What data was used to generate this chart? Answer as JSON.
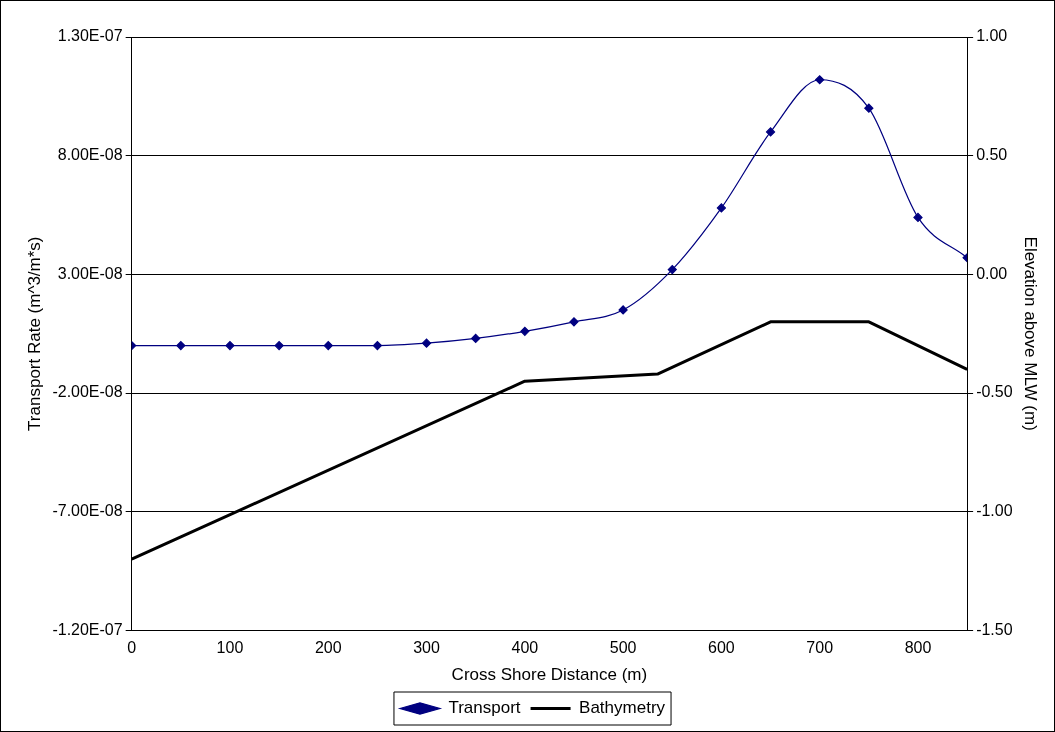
{
  "chart_data": {
    "type": "line",
    "xlabel": "Cross Shore Distance (m)",
    "ylabel": "Transport Rate (m^3/m*s)",
    "y2label": "Elevation above MLW (m)",
    "xlim": [
      0,
      850
    ],
    "xticks": [
      0,
      100,
      200,
      300,
      400,
      500,
      600,
      700,
      800
    ],
    "ylim": [
      -1.2e-07,
      1.3e-07
    ],
    "yticks": [
      {
        "value": -1.2e-07,
        "label": "-1.20E-07"
      },
      {
        "value": -7e-08,
        "label": "-7.00E-08"
      },
      {
        "value": -2e-08,
        "label": "-2.00E-08"
      },
      {
        "value": 3e-08,
        "label": "3.00E-08"
      },
      {
        "value": 8e-08,
        "label": "8.00E-08"
      },
      {
        "value": 1.3e-07,
        "label": "1.30E-07"
      }
    ],
    "y2lim": [
      -1.5,
      1
    ],
    "y2ticks": [
      {
        "value": -1.5,
        "label": "-1.50"
      },
      {
        "value": -1,
        "label": "-1.00"
      },
      {
        "value": -0.5,
        "label": "-0.50"
      },
      {
        "value": 0,
        "label": "0.00"
      },
      {
        "value": 0.5,
        "label": "0.50"
      },
      {
        "value": 1,
        "label": "1.00"
      }
    ],
    "grid": "y",
    "legend": "bottom",
    "series": [
      {
        "name": "Transport",
        "color": "#000080",
        "marker": "diamond",
        "x": [
          0,
          50,
          100,
          150,
          200,
          250,
          300,
          350,
          400,
          450,
          500,
          550,
          600,
          650,
          700,
          750,
          800,
          850
        ],
        "values": [
          0,
          0,
          0,
          0,
          0,
          0,
          1e-09,
          3e-09,
          6e-09,
          1e-08,
          1.5e-08,
          3.2e-08,
          5.8e-08,
          9e-08,
          1.12e-07,
          1e-07,
          5.4e-08,
          3.7e-08
        ]
      },
      {
        "name": "Bathymetry",
        "color": "#000000",
        "marker": "none",
        "axis": "y2",
        "x": [
          0,
          400,
          535,
          650,
          750,
          850
        ],
        "values": [
          -1.2,
          -0.45,
          -0.42,
          -0.2,
          -0.2,
          -0.4
        ]
      }
    ]
  }
}
